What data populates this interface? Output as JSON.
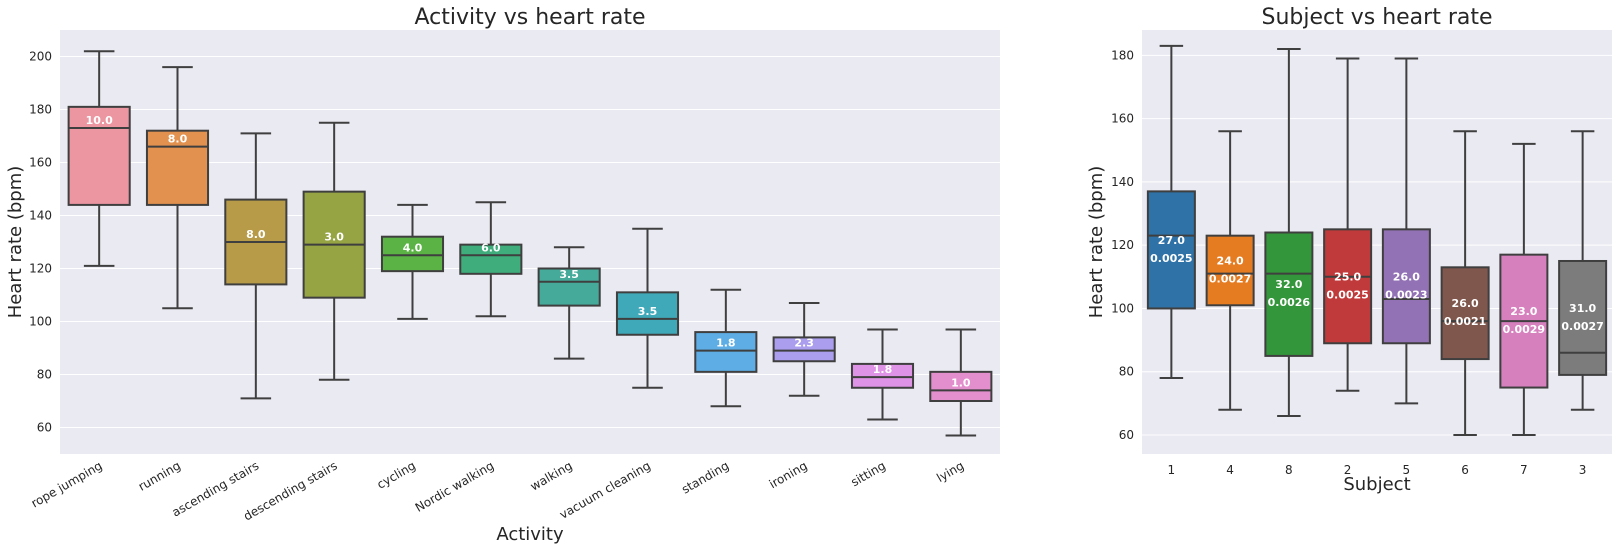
{
  "chart_data": [
    {
      "type": "box",
      "title": "Activity vs heart rate",
      "xlabel": "Activity",
      "ylabel": "Heart rate (bpm)",
      "ylim": [
        50,
        210
      ],
      "yticks": [
        60,
        80,
        100,
        120,
        140,
        160,
        180,
        200
      ],
      "grid": true,
      "categories": [
        "rope jumping",
        "running",
        "ascending stairs",
        "descending stairs",
        "cycling",
        "Nordic walking",
        "walking",
        "vacuum cleaning",
        "standing",
        "ironing",
        "sitting",
        "lying"
      ],
      "boxes": [
        {
          "min": 121,
          "q1": 144,
          "median": 173,
          "q3": 181,
          "max": 202,
          "color": "#ec96a2",
          "labels": [
            "10.0"
          ]
        },
        {
          "min": 105,
          "q1": 144,
          "median": 166,
          "q3": 172,
          "max": 196,
          "color": "#e2914f",
          "labels": [
            "8.0"
          ]
        },
        {
          "min": 71,
          "q1": 114,
          "median": 130,
          "q3": 146,
          "max": 171,
          "color": "#b89b48",
          "labels": [
            "8.0"
          ]
        },
        {
          "min": 78,
          "q1": 109,
          "median": 129,
          "q3": 149,
          "max": 175,
          "color": "#96a444",
          "labels": [
            "3.0"
          ]
        },
        {
          "min": 101,
          "q1": 119,
          "median": 125,
          "q3": 132,
          "max": 144,
          "color": "#5bb245",
          "labels": [
            "4.0"
          ]
        },
        {
          "min": 102,
          "q1": 118,
          "median": 125,
          "q3": 129,
          "max": 145,
          "color": "#3fae7c",
          "labels": [
            "6.0"
          ]
        },
        {
          "min": 86,
          "q1": 106,
          "median": 115,
          "q3": 120,
          "max": 128,
          "color": "#45aa9a",
          "labels": [
            "3.5"
          ]
        },
        {
          "min": 75,
          "q1": 95,
          "median": 101,
          "q3": 111,
          "max": 135,
          "color": "#40a9b9",
          "labels": [
            "3.5"
          ]
        },
        {
          "min": 68,
          "q1": 81,
          "median": 89,
          "q3": 96,
          "max": 112,
          "color": "#5eaee5",
          "labels": [
            "1.8"
          ]
        },
        {
          "min": 72,
          "q1": 85,
          "median": 89,
          "q3": 94,
          "max": 107,
          "color": "#ab9eee",
          "labels": [
            "2.3"
          ]
        },
        {
          "min": 63,
          "q1": 75,
          "median": 79,
          "q3": 84,
          "max": 97,
          "color": "#df93e6",
          "labels": [
            "1.8"
          ]
        },
        {
          "min": 57,
          "q1": 70,
          "median": 74,
          "q3": 81,
          "max": 97,
          "color": "#e48fcd",
          "labels": [
            "1.0"
          ]
        }
      ]
    },
    {
      "type": "box",
      "title": "Subject vs heart rate",
      "xlabel": "Subject",
      "ylabel": "Heart rate (bpm)",
      "ylim": [
        54,
        188
      ],
      "yticks": [
        60,
        80,
        100,
        120,
        140,
        160,
        180
      ],
      "grid": true,
      "categories": [
        "1",
        "4",
        "8",
        "2",
        "5",
        "6",
        "7",
        "3"
      ],
      "boxes": [
        {
          "min": 78,
          "q1": 100,
          "median": 123,
          "q3": 137,
          "max": 183,
          "color": "#2f72a8",
          "labels": [
            "27.0",
            "0.0025"
          ]
        },
        {
          "min": 68,
          "q1": 101,
          "median": 111,
          "q3": 123,
          "max": 156,
          "color": "#e57c22",
          "labels": [
            "24.0",
            "0.0027"
          ]
        },
        {
          "min": 66,
          "q1": 85,
          "median": 111,
          "q3": 124,
          "max": 182,
          "color": "#34963a",
          "labels": [
            "32.0",
            "0.0026"
          ]
        },
        {
          "min": 74,
          "q1": 89,
          "median": 110,
          "q3": 125,
          "max": 179,
          "color": "#c13a3b",
          "labels": [
            "25.0",
            "0.0025"
          ]
        },
        {
          "min": 70,
          "q1": 89,
          "median": 103,
          "q3": 125,
          "max": 179,
          "color": "#9272b5",
          "labels": [
            "26.0",
            "0.0023"
          ]
        },
        {
          "min": 60,
          "q1": 84,
          "median": 96,
          "q3": 113,
          "max": 156,
          "color": "#80574d",
          "labels": [
            "26.0",
            "0.0021"
          ]
        },
        {
          "min": 60,
          "q1": 75,
          "median": 96,
          "q3": 117,
          "max": 152,
          "color": "#d680be",
          "labels": [
            "23.0",
            "0.0029"
          ]
        },
        {
          "min": 68,
          "q1": 79,
          "median": 86,
          "q3": 115,
          "max": 156,
          "color": "#7c7c7c",
          "labels": [
            "31.0",
            "0.0027"
          ]
        }
      ]
    }
  ]
}
